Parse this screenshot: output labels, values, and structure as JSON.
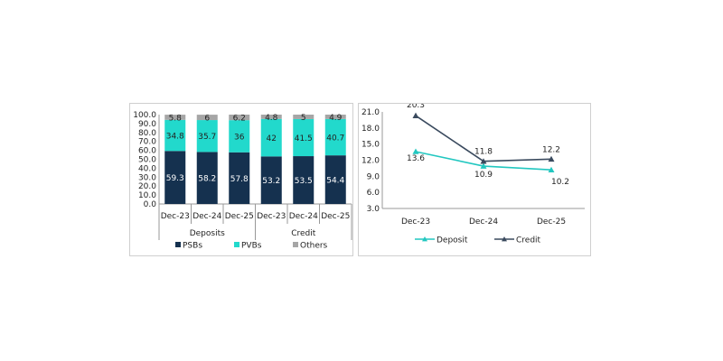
{
  "chart_data": [
    {
      "type": "bar",
      "stacked": true,
      "groups": [
        {
          "label": "Deposits",
          "categories": [
            "Dec-23",
            "Dec-24",
            "Dec-25"
          ]
        },
        {
          "label": "Credit",
          "categories": [
            "Dec-23",
            "Dec-24",
            "Dec-25"
          ]
        }
      ],
      "categories": [
        "Dec-23",
        "Dec-24",
        "Dec-25",
        "Dec-23",
        "Dec-24",
        "Dec-25"
      ],
      "series": [
        {
          "name": "PSBs",
          "color": "#15314f",
          "values": [
            59.3,
            58.2,
            57.8,
            53.2,
            53.5,
            54.4
          ]
        },
        {
          "name": "PVBs",
          "color": "#22d9cc",
          "values": [
            34.8,
            35.7,
            36.0,
            42.0,
            41.5,
            40.7
          ]
        },
        {
          "name": "Others",
          "color": "#a6a6a6",
          "values": [
            5.8,
            6.0,
            6.2,
            4.8,
            5.0,
            4.9
          ]
        }
      ],
      "ylim": [
        0,
        100
      ],
      "yticks": [
        "0.0",
        "10.0",
        "20.0",
        "30.0",
        "40.0",
        "50.0",
        "60.0",
        "70.0",
        "80.0",
        "90.0",
        "100.0"
      ],
      "grid": false,
      "legend": "bottom"
    },
    {
      "type": "line",
      "categories": [
        "Dec-23",
        "Dec-24",
        "Dec-25"
      ],
      "series": [
        {
          "name": "Deposit",
          "color": "#22c7c0",
          "values": [
            13.6,
            10.9,
            10.2
          ]
        },
        {
          "name": "Credit",
          "color": "#3a4a5e",
          "values": [
            20.3,
            11.8,
            12.2
          ]
        }
      ],
      "ylim": [
        3,
        21
      ],
      "yticks": [
        "3.0",
        "6.0",
        "9.0",
        "12.0",
        "15.0",
        "18.0",
        "21.0"
      ],
      "grid": false,
      "legend": "bottom",
      "marker": "triangle"
    }
  ]
}
